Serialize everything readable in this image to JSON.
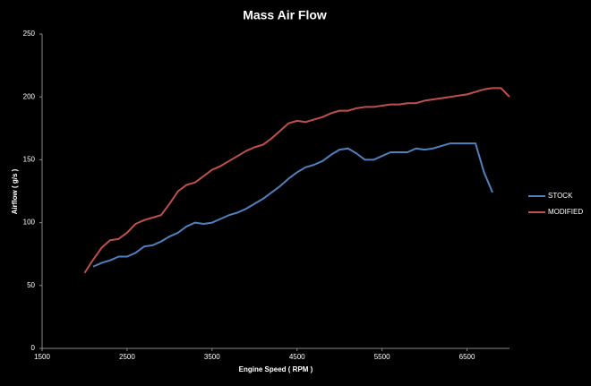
{
  "chart_data": {
    "type": "line",
    "title": "Mass Air Flow",
    "x_label": "Engine Speed ( RPM )",
    "y_label": "Airflow ( g/s )",
    "x": [
      2000,
      2100,
      2200,
      2300,
      2400,
      2500,
      2600,
      2700,
      2800,
      2900,
      3000,
      3100,
      3200,
      3300,
      3400,
      3500,
      3600,
      3700,
      3800,
      3900,
      4000,
      4100,
      4200,
      4300,
      4400,
      4500,
      4600,
      4700,
      4800,
      4900,
      5000,
      5100,
      5200,
      5300,
      5400,
      5500,
      5600,
      5700,
      5800,
      5900,
      6000,
      6100,
      6200,
      6300,
      6400,
      6500,
      6600,
      6700,
      6800,
      6900,
      7000
    ],
    "series": [
      {
        "name": "STOCK",
        "color": "#4f81bd",
        "values": [
          null,
          65,
          68,
          70,
          73,
          73,
          76,
          81,
          82,
          85,
          89,
          92,
          97,
          100,
          99,
          100,
          103,
          106,
          108,
          111,
          115,
          119,
          124,
          129,
          135,
          140,
          144,
          146,
          149,
          154,
          158,
          159,
          155,
          150,
          150,
          153,
          156,
          156,
          156,
          159,
          158,
          159,
          161,
          163,
          163,
          163,
          163,
          140,
          124,
          null,
          null
        ]
      },
      {
        "name": "MODIFIED",
        "color": "#c0504d",
        "values": [
          60,
          70.5,
          80,
          86,
          87,
          92,
          99,
          102,
          104,
          106,
          115,
          125,
          130,
          132,
          137,
          142,
          145,
          149,
          153,
          157,
          160,
          162,
          167,
          173,
          179,
          181,
          180,
          182,
          184,
          187,
          189,
          189,
          191,
          192,
          192,
          193,
          194,
          194,
          195,
          195,
          197,
          198,
          199,
          200,
          201,
          202,
          204,
          206,
          207,
          207,
          200
        ]
      }
    ],
    "xlim": [
      1500,
      7000
    ],
    "xticks": [
      1500,
      2500,
      3500,
      4500,
      5500,
      6500
    ],
    "ylim": [
      0,
      250
    ],
    "yticks": [
      0,
      50,
      100,
      150,
      200,
      250
    ],
    "grid": false,
    "legend": "right"
  }
}
